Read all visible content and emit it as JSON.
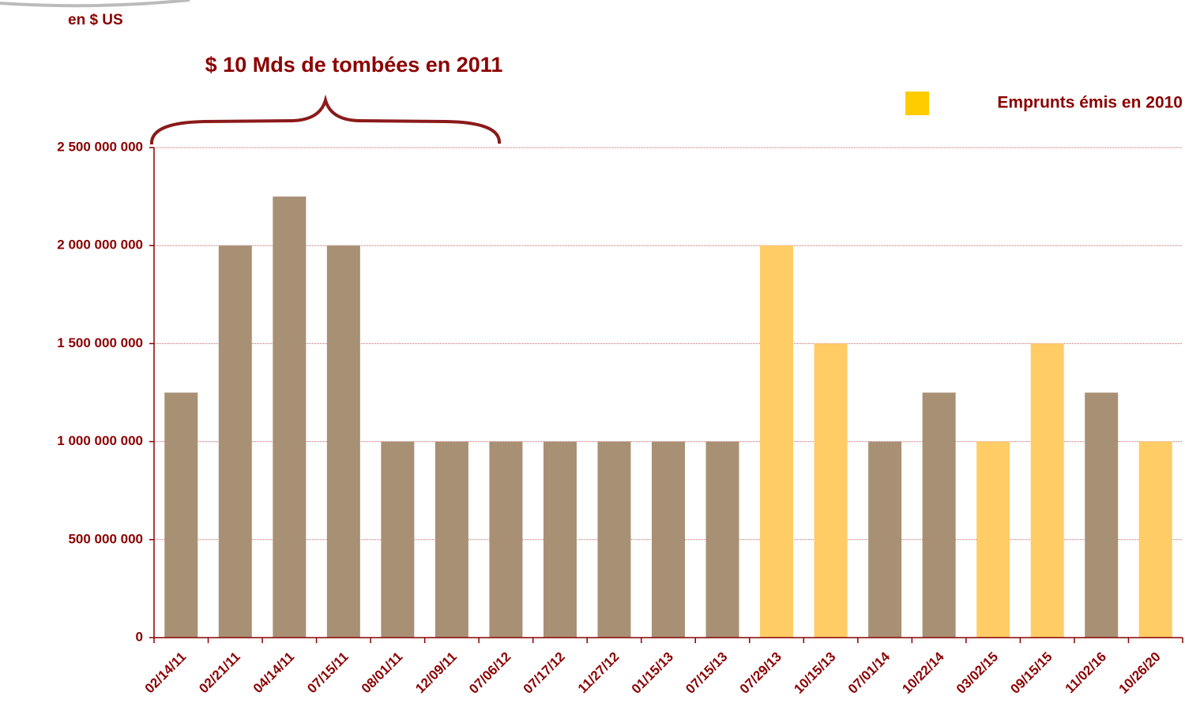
{
  "chart_data": {
    "type": "bar",
    "unit_label": "en $ US",
    "annotation": "$ 10 Mds de tombées en 2011",
    "categories": [
      "02/14/11",
      "02/21/11",
      "04/14/11",
      "07/15/11",
      "08/01/11",
      "12/09/11",
      "07/06/12",
      "07/17/12",
      "11/27/12",
      "01/15/13",
      "07/15/13",
      "07/29/13",
      "10/15/13",
      "07/01/14",
      "10/22/14",
      "03/02/15",
      "09/15/15",
      "11/02/16",
      "10/26/20"
    ],
    "values": [
      1250000000,
      2000000000,
      2250000000,
      2000000000,
      1000000000,
      1000000000,
      1000000000,
      1000000000,
      1000000000,
      1000000000,
      1000000000,
      2000000000,
      1500000000,
      1000000000,
      1250000000,
      1000000000,
      1500000000,
      1250000000,
      1000000000
    ],
    "colors": [
      "#a89075",
      "#a89075",
      "#a89075",
      "#a89075",
      "#a89075",
      "#a89075",
      "#a89075",
      "#a89075",
      "#a89075",
      "#a89075",
      "#a89075",
      "#ffcc66",
      "#ffcc66",
      "#a89075",
      "#a89075",
      "#ffcc66",
      "#ffcc66",
      "#a89075",
      "#ffcc66"
    ],
    "legend": {
      "label": "Emprunts émis en 2010",
      "color": "#ffcc00",
      "position": "top-right"
    },
    "ylim": [
      0,
      2500000000
    ],
    "yticks": [
      0,
      {
        "value": 500000000,
        "label": "500 000 000"
      },
      {
        "value": 1000000000,
        "label": "1 000 000 000"
      },
      {
        "value": 1500000000,
        "label": "1 500 000 000"
      },
      {
        "value": 2000000000,
        "label": "2 000 000 000"
      },
      {
        "value": 2500000000,
        "label": "2 500 000 000"
      }
    ],
    "grid": true
  }
}
